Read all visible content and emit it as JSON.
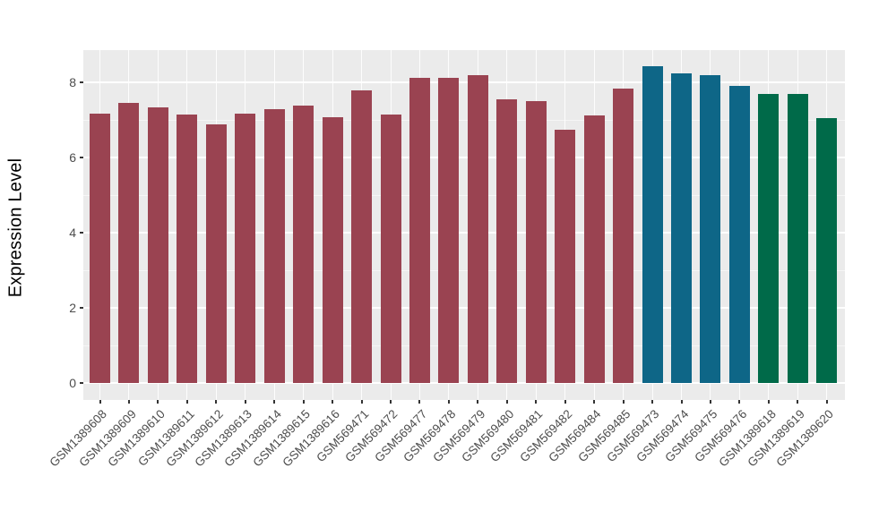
{
  "chart_data": {
    "type": "bar",
    "title": "",
    "xlabel": "",
    "ylabel": "Expression Level",
    "ylim": [
      -0.45,
      8.86
    ],
    "yticks": [
      0,
      2,
      4,
      6,
      8
    ],
    "yticks_minor": [
      1,
      3,
      5,
      7
    ],
    "grid": "on",
    "legend_position": "none",
    "panel_background": "#EBEBEB",
    "gridline_color": "#FFFFFF",
    "tick_text_color": "#4D4D4D",
    "group_colors": {
      "group1": "#9A4351",
      "group2": "#0E6687",
      "group3": "#006A49"
    },
    "bars": [
      {
        "label": "GSM1389608",
        "value": 7.17,
        "group": "group1"
      },
      {
        "label": "GSM1389609",
        "value": 7.46,
        "group": "group1"
      },
      {
        "label": "GSM1389610",
        "value": 7.33,
        "group": "group1"
      },
      {
        "label": "GSM1389611",
        "value": 7.14,
        "group": "group1"
      },
      {
        "label": "GSM1389612",
        "value": 6.87,
        "group": "group1"
      },
      {
        "label": "GSM1389613",
        "value": 7.17,
        "group": "group1"
      },
      {
        "label": "GSM1389614",
        "value": 7.29,
        "group": "group1"
      },
      {
        "label": "GSM1389615",
        "value": 7.39,
        "group": "group1"
      },
      {
        "label": "GSM1389616",
        "value": 7.08,
        "group": "group1"
      },
      {
        "label": "GSM569471",
        "value": 7.79,
        "group": "group1"
      },
      {
        "label": "GSM569472",
        "value": 7.15,
        "group": "group1"
      },
      {
        "label": "GSM569477",
        "value": 8.13,
        "group": "group1"
      },
      {
        "label": "GSM569478",
        "value": 8.13,
        "group": "group1"
      },
      {
        "label": "GSM569479",
        "value": 8.2,
        "group": "group1"
      },
      {
        "label": "GSM569480",
        "value": 7.55,
        "group": "group1"
      },
      {
        "label": "GSM569481",
        "value": 7.49,
        "group": "group1"
      },
      {
        "label": "GSM569482",
        "value": 6.73,
        "group": "group1"
      },
      {
        "label": "GSM569484",
        "value": 7.11,
        "group": "group1"
      },
      {
        "label": "GSM569485",
        "value": 7.84,
        "group": "group1"
      },
      {
        "label": "GSM569473",
        "value": 8.43,
        "group": "group2"
      },
      {
        "label": "GSM569474",
        "value": 8.23,
        "group": "group2"
      },
      {
        "label": "GSM569475",
        "value": 8.19,
        "group": "group2"
      },
      {
        "label": "GSM569476",
        "value": 7.91,
        "group": "group2"
      },
      {
        "label": "GSM1389618",
        "value": 7.69,
        "group": "group3"
      },
      {
        "label": "GSM1389619",
        "value": 7.69,
        "group": "group3"
      },
      {
        "label": "GSM1389620",
        "value": 7.05,
        "group": "group3"
      }
    ]
  }
}
